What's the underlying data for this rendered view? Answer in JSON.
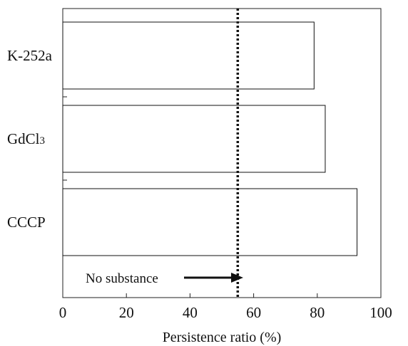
{
  "chart_data": {
    "type": "bar",
    "orientation": "horizontal",
    "categories": [
      "K-252a",
      "GdCl3",
      "CCCP"
    ],
    "category_labels": [
      {
        "main": "K-252a",
        "sub": ""
      },
      {
        "main": "GdCl",
        "sub": "3"
      },
      {
        "main": "CCCP",
        "sub": ""
      }
    ],
    "values": [
      79,
      82.5,
      92.5
    ],
    "xlabel": "Persistence ratio (%)",
    "xlim": [
      0,
      100
    ],
    "xticks": [
      0,
      20,
      40,
      60,
      80,
      100
    ],
    "reference_line": {
      "value": 55,
      "style": "dotted",
      "label": "No substance"
    },
    "grid": false,
    "legend": "none",
    "colors": {
      "bar_fill": "#ffffff",
      "bar_stroke": "#111111",
      "reference": "#111111"
    }
  }
}
